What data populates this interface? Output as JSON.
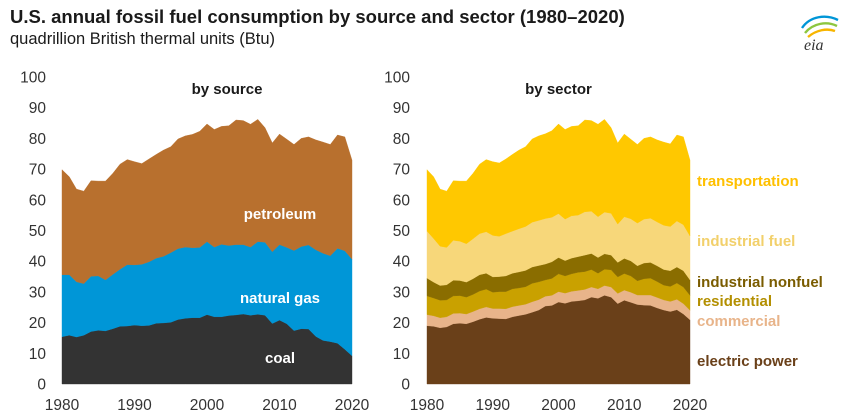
{
  "header": {
    "title": "U.S. annual fossil fuel consumption by source and sector (1980–2020)",
    "subtitle": "quadrillion British thermal units (Btu)",
    "logo_text": "eia"
  },
  "chart_data": [
    {
      "type": "area",
      "stacked": true,
      "title": "by source",
      "x": [
        1980,
        1981,
        1982,
        1983,
        1984,
        1985,
        1986,
        1987,
        1988,
        1989,
        1990,
        1991,
        1992,
        1993,
        1994,
        1995,
        1996,
        1997,
        1998,
        1999,
        2000,
        2001,
        2002,
        2003,
        2004,
        2005,
        2006,
        2007,
        2008,
        2009,
        2010,
        2011,
        2012,
        2013,
        2014,
        2015,
        2016,
        2017,
        2018,
        2019,
        2020
      ],
      "ylim": [
        0,
        100
      ],
      "yticks": [
        0,
        10,
        20,
        30,
        40,
        50,
        60,
        70,
        80,
        90,
        100
      ],
      "xticks": [
        1980,
        1990,
        2000,
        2010,
        2020
      ],
      "series": [
        {
          "name": "coal",
          "color": "#333333",
          "label_color": "#ffffff",
          "values": [
            15.4,
            15.9,
            15.3,
            15.9,
            17.1,
            17.5,
            17.3,
            18.0,
            18.8,
            18.9,
            19.2,
            19.0,
            19.1,
            19.8,
            19.9,
            20.1,
            21.0,
            21.4,
            21.6,
            21.6,
            22.6,
            21.9,
            21.9,
            22.3,
            22.5,
            22.8,
            22.4,
            22.7,
            22.4,
            19.7,
            20.8,
            19.6,
            17.4,
            18.0,
            17.9,
            15.5,
            14.2,
            13.8,
            13.3,
            11.3,
            9.2
          ]
        },
        {
          "name": "natural gas",
          "color": "#0096d7",
          "label_color": "#ffffff",
          "values": [
            20.2,
            19.7,
            18.0,
            16.8,
            18.0,
            17.7,
            16.6,
            17.7,
            18.6,
            20.0,
            19.6,
            20.0,
            20.7,
            21.2,
            21.7,
            22.7,
            23.1,
            23.2,
            22.8,
            22.9,
            23.8,
            22.7,
            23.6,
            22.8,
            22.9,
            22.6,
            22.2,
            23.7,
            23.8,
            23.4,
            24.6,
            24.9,
            26.1,
            26.8,
            27.4,
            28.2,
            28.4,
            28.0,
            30.9,
            32.1,
            31.5
          ]
        },
        {
          "name": "petroleum",
          "color": "#b8702e",
          "label_color": "#ffffff",
          "values": [
            34.2,
            31.9,
            30.2,
            30.1,
            31.1,
            30.9,
            32.2,
            32.9,
            34.2,
            34.2,
            33.6,
            32.8,
            33.5,
            33.8,
            34.6,
            34.5,
            35.7,
            36.2,
            36.9,
            37.8,
            38.3,
            38.3,
            38.4,
            39.0,
            40.6,
            40.4,
            40.0,
            39.8,
            37.3,
            35.4,
            36.0,
            35.2,
            34.5,
            35.2,
            35.2,
            35.8,
            36.2,
            36.2,
            36.9,
            37.1,
            32.2
          ]
        }
      ]
    },
    {
      "type": "area",
      "stacked": true,
      "title": "by sector",
      "x": [
        1980,
        1981,
        1982,
        1983,
        1984,
        1985,
        1986,
        1987,
        1988,
        1989,
        1990,
        1991,
        1992,
        1993,
        1994,
        1995,
        1996,
        1997,
        1998,
        1999,
        2000,
        2001,
        2002,
        2003,
        2004,
        2005,
        2006,
        2007,
        2008,
        2009,
        2010,
        2011,
        2012,
        2013,
        2014,
        2015,
        2016,
        2017,
        2018,
        2019,
        2020
      ],
      "ylim": [
        0,
        100
      ],
      "yticks": [
        0,
        10,
        20,
        30,
        40,
        50,
        60,
        70,
        80,
        90,
        100
      ],
      "xticks": [
        1980,
        1990,
        2000,
        2010,
        2020
      ],
      "series": [
        {
          "name": "electric power",
          "color": "#6a4019",
          "label_color": "#6a4019",
          "values": [
            19.0,
            18.8,
            18.3,
            18.6,
            19.6,
            19.8,
            19.6,
            20.3,
            21.1,
            21.7,
            21.4,
            21.3,
            21.2,
            21.9,
            22.3,
            22.7,
            23.4,
            24.1,
            25.4,
            25.6,
            26.7,
            26.3,
            26.9,
            27.1,
            27.4,
            28.3,
            27.9,
            28.9,
            28.3,
            26.2,
            27.3,
            26.6,
            25.9,
            25.7,
            25.6,
            24.8,
            24.1,
            23.6,
            24.2,
            22.8,
            20.9
          ]
        },
        {
          "name": "commercial",
          "color": "#e8b48a",
          "label_color": "#e8b48a",
          "values": [
            3.6,
            3.4,
            3.3,
            3.3,
            3.4,
            3.3,
            3.2,
            3.3,
            3.4,
            3.4,
            3.2,
            3.3,
            3.3,
            3.3,
            3.3,
            3.3,
            3.4,
            3.4,
            3.2,
            3.3,
            3.4,
            3.3,
            3.3,
            3.4,
            3.4,
            3.3,
            3.1,
            3.2,
            3.3,
            3.3,
            3.3,
            3.3,
            3.1,
            3.3,
            3.4,
            3.4,
            3.3,
            3.3,
            3.4,
            3.4,
            3.1
          ]
        },
        {
          "name": "residential",
          "color": "#c9a100",
          "label_color": "#b38f00",
          "values": [
            6.1,
            5.8,
            5.7,
            5.5,
            5.7,
            5.7,
            5.5,
            5.6,
            5.8,
            5.8,
            5.3,
            5.5,
            5.6,
            5.8,
            5.7,
            5.7,
            6.0,
            5.8,
            5.3,
            5.5,
            5.8,
            5.6,
            5.7,
            5.9,
            5.8,
            5.7,
            5.1,
            5.3,
            5.6,
            5.4,
            5.4,
            5.3,
            4.6,
            5.3,
            5.5,
            5.2,
            4.8,
            4.9,
            5.3,
            5.4,
            4.9
          ]
        },
        {
          "name": "industrial nonfuel",
          "color": "#8a6d00",
          "label_color": "#7a5c00",
          "values": [
            5.8,
            5.2,
            4.8,
            4.9,
            5.1,
            4.9,
            4.9,
            5.1,
            5.3,
            5.2,
            5.0,
            4.9,
            5.1,
            5.1,
            5.2,
            5.3,
            5.3,
            5.3,
            5.2,
            5.4,
            5.3,
            5.0,
            5.1,
            5.1,
            5.4,
            5.2,
            5.1,
            5.0,
            4.8,
            4.7,
            4.9,
            4.9,
            4.9,
            5.1,
            5.1,
            5.1,
            5.1,
            5.1,
            5.2,
            5.3,
            5.0
          ]
        },
        {
          "name": "industrial fuel",
          "color": "#f7d77a",
          "label_color": "#f2d06b",
          "values": [
            15.3,
            14.2,
            12.8,
            12.2,
            13.0,
            12.8,
            12.5,
            13.0,
            13.4,
            13.5,
            13.5,
            13.1,
            13.8,
            13.7,
            14.1,
            14.3,
            14.6,
            14.7,
            14.8,
            14.5,
            14.3,
            13.5,
            13.8,
            13.5,
            14.1,
            13.8,
            13.3,
            13.6,
            13.6,
            12.5,
            13.6,
            13.7,
            13.9,
            14.3,
            14.4,
            14.3,
            14.4,
            14.4,
            15.0,
            15.0,
            14.3
          ]
        },
        {
          "name": "transportation",
          "color": "#ffc800",
          "label_color": "#ffc000",
          "values": [
            20.0,
            20.1,
            18.6,
            18.3,
            19.4,
            19.6,
            20.4,
            21.3,
            22.6,
            23.5,
            24.0,
            23.9,
            24.3,
            25.0,
            25.6,
            26.0,
            27.1,
            27.5,
            27.6,
            28.2,
            29.2,
            29.2,
            29.1,
            29.1,
            29.9,
            29.5,
            30.1,
            30.2,
            27.9,
            26.4,
            26.9,
            25.9,
            25.6,
            26.3,
            26.5,
            26.7,
            27.1,
            26.9,
            28.0,
            28.6,
            24.7
          ]
        }
      ]
    }
  ]
}
